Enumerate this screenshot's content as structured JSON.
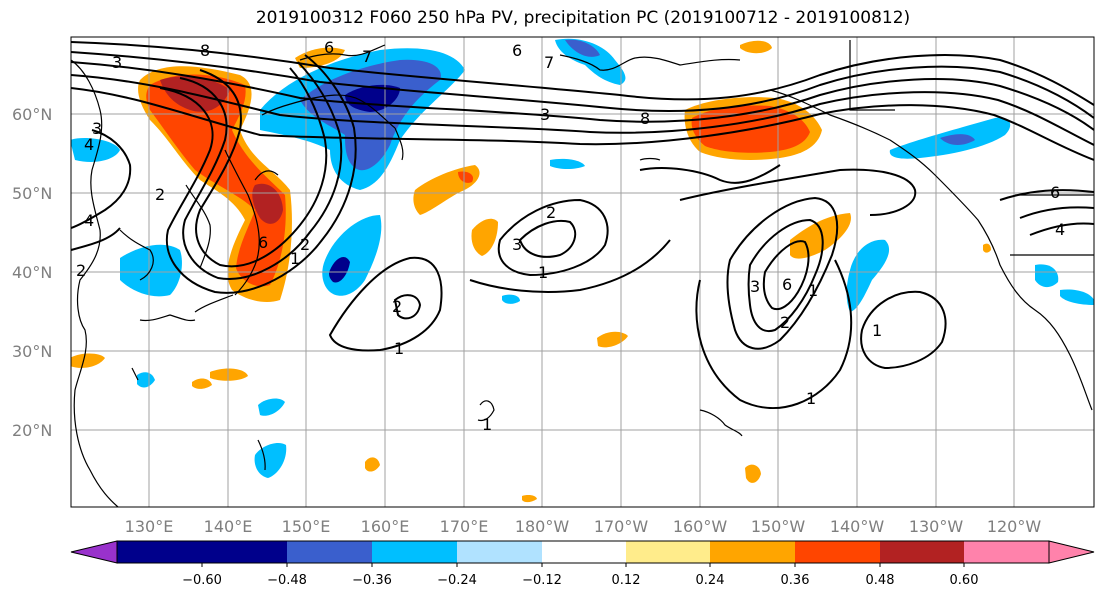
{
  "title": "2019100312 F060 250 hPa PV, precipitation PC (2019100712 - 2019100812)",
  "map": {
    "lat_labels": [
      "60°N",
      "50°N",
      "40°N",
      "30°N",
      "20°N"
    ],
    "lon_labels": [
      "130°E",
      "140°E",
      "150°E",
      "160°E",
      "170°E",
      "180°W",
      "170°W",
      "160°W",
      "150°W",
      "140°W",
      "130°W",
      "120°W"
    ],
    "pv_contour_labels": [
      "8",
      "6",
      "7",
      "6",
      "3",
      "7",
      "3",
      "4",
      "3",
      "8",
      "2",
      "4",
      "6",
      "2",
      "2",
      "3",
      "2",
      "1",
      "1",
      "2",
      "1",
      "1",
      "1",
      "6",
      "3",
      "2",
      "1",
      "4",
      "6",
      "1"
    ]
  },
  "colorbar": {
    "tick_labels": [
      "−0.60",
      "−0.48",
      "−0.36",
      "−0.24",
      "−0.12",
      "0.12",
      "0.24",
      "0.36",
      "0.48",
      "0.60"
    ],
    "colors": [
      "#9932cc",
      "#00008b",
      "#3a5fcd",
      "#00bfff",
      "#b0e2ff",
      "#ffffff",
      "#ffec8b",
      "#ffa500",
      "#ff4500",
      "#b22222",
      "#ff82ab"
    ]
  }
}
